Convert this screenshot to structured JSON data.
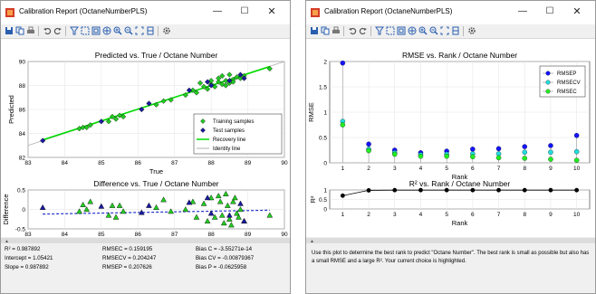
{
  "left": {
    "window_title": "Calibration Report (OctaneNumberPLS)",
    "stats": [
      {
        "label": "R² = 0.987892"
      },
      {
        "label": "Intercept = 1.05421"
      },
      {
        "label": "Slope = 0.987892"
      },
      {
        "label": "RMSEC = 0.159195"
      },
      {
        "label": "RMSECV = 0.204247"
      },
      {
        "label": "RMSEP = 0.207626"
      },
      {
        "label": "Bias C = -3.55271e-14"
      },
      {
        "label": "Bias CV = -0.00879367"
      },
      {
        "label": "Bias P = -0.0625958"
      }
    ]
  },
  "right": {
    "window_title": "Calibration Report (OctaneNumberPLS)",
    "note": "Use this plot to determine the best rank to predict \"Octane Number\". The best rank is small as possible but also has a small RMSE and a large R². Your current choice is highlighted."
  },
  "toolbar_icons": [
    "save-icon",
    "copy-icon",
    "print-icon",
    "undo-icon",
    "redo-icon",
    "filter-icon",
    "select-icon",
    "zoom-box-icon",
    "pan-icon",
    "zoom-in-icon",
    "zoom-out-icon",
    "fit-icon",
    "grid-icon",
    "settings-icon"
  ],
  "colors": {
    "training": "#22cc22",
    "test": "#1a1aa0",
    "recovery": "#00dd00",
    "identity": "#b0b0b0",
    "rmsep": "#1414ff",
    "rmsecv": "#22dddd",
    "rmsec": "#22ee22",
    "accent_red": "#d43c28"
  },
  "chart_data": [
    {
      "type": "scatter",
      "title": "Predicted vs. True / Octane Number",
      "xlabel": "True",
      "ylabel": "Predicted",
      "xlim": [
        83,
        90
      ],
      "ylim": [
        82,
        90
      ],
      "xticks": [
        83,
        84,
        85,
        86,
        87,
        88,
        89,
        90
      ],
      "yticks": [
        82,
        84,
        86,
        88,
        90
      ],
      "grid": true,
      "legend": {
        "placement": "bottom-right",
        "entries": [
          "Training samples",
          "Test samples",
          "Recovery line",
          "Identity line"
        ]
      },
      "series": [
        {
          "name": "Training samples",
          "marker": "diamond",
          "points": [
            [
              84.4,
              84.4
            ],
            [
              84.5,
              84.5
            ],
            [
              84.6,
              84.5
            ],
            [
              84.7,
              84.7
            ],
            [
              85.2,
              85.0
            ],
            [
              85.3,
              85.4
            ],
            [
              85.4,
              85.2
            ],
            [
              85.5,
              85.5
            ],
            [
              85.6,
              85.4
            ],
            [
              86.5,
              86.4
            ],
            [
              86.7,
              86.7
            ],
            [
              86.9,
              86.8
            ],
            [
              87.3,
              87.2
            ],
            [
              87.5,
              87.6
            ],
            [
              87.6,
              87.4
            ],
            [
              87.8,
              87.9
            ],
            [
              87.9,
              87.7
            ],
            [
              88.0,
              88.1
            ],
            [
              88.1,
              87.9
            ],
            [
              88.2,
              88.3
            ],
            [
              88.3,
              88.1
            ],
            [
              88.4,
              88.4
            ],
            [
              88.5,
              88.2
            ],
            [
              88.6,
              88.5
            ],
            [
              88.7,
              88.7
            ],
            [
              88.8,
              88.6
            ],
            [
              88.9,
              88.8
            ],
            [
              88.2,
              88.6
            ],
            [
              88.0,
              88.4
            ],
            [
              87.7,
              88.2
            ],
            [
              88.5,
              88.9
            ],
            [
              88.3,
              88.8
            ],
            [
              88.6,
              88.3
            ],
            [
              88.4,
              88.0
            ],
            [
              89.6,
              89.4
            ]
          ]
        },
        {
          "name": "Test samples",
          "marker": "diamond",
          "points": [
            [
              83.4,
              83.4
            ],
            [
              85.0,
              85.0
            ],
            [
              86.1,
              86.0
            ],
            [
              86.3,
              86.5
            ],
            [
              87.4,
              87.6
            ],
            [
              87.9,
              88.3
            ],
            [
              88.0,
              88.0
            ],
            [
              88.5,
              88.4
            ],
            [
              88.8,
              88.9
            ],
            [
              88.9,
              88.6
            ]
          ]
        },
        {
          "name": "Recovery line",
          "type": "line",
          "x": [
            83.4,
            89.6
          ],
          "y": [
            83.46,
            89.58
          ]
        },
        {
          "name": "Identity line",
          "type": "line",
          "x": [
            83,
            90
          ],
          "y": [
            83,
            90
          ]
        }
      ]
    },
    {
      "type": "scatter",
      "title": "Difference vs. True / Octane Number",
      "xlabel": "",
      "ylabel": "Difference",
      "xlim": [
        83,
        90
      ],
      "ylim": [
        -0.5,
        0.5
      ],
      "xticks": [
        83,
        84,
        85,
        86,
        87,
        88,
        89,
        90
      ],
      "yticks": [
        -0.5,
        0,
        0.5
      ],
      "grid": true,
      "series": [
        {
          "name": "Training samples",
          "marker": "triangle",
          "points": [
            [
              84.4,
              -0.05
            ],
            [
              84.5,
              0.12
            ],
            [
              84.6,
              0.0
            ],
            [
              84.7,
              0.2
            ],
            [
              85.2,
              -0.15
            ],
            [
              85.3,
              0.1
            ],
            [
              85.4,
              -0.2
            ],
            [
              85.5,
              0.1
            ],
            [
              85.6,
              -0.05
            ],
            [
              86.5,
              0.05
            ],
            [
              86.7,
              0.25
            ],
            [
              86.9,
              -0.05
            ],
            [
              87.3,
              0.0
            ],
            [
              87.5,
              0.2
            ],
            [
              87.6,
              -0.2
            ],
            [
              87.8,
              0.15
            ],
            [
              87.9,
              -0.3
            ],
            [
              88.0,
              0.3
            ],
            [
              88.1,
              -0.2
            ],
            [
              88.2,
              0.35
            ],
            [
              88.3,
              -0.15
            ],
            [
              88.4,
              0.4
            ],
            [
              88.5,
              -0.25
            ],
            [
              88.6,
              0.2
            ],
            [
              88.7,
              -0.1
            ],
            [
              88.8,
              0.0
            ],
            [
              88.9,
              -0.3
            ],
            [
              88.25,
              0.2
            ],
            [
              88.35,
              -0.35
            ],
            [
              88.45,
              0.1
            ],
            [
              88.55,
              -0.4
            ],
            [
              88.65,
              0.3
            ],
            [
              88.75,
              -0.2
            ],
            [
              89.6,
              -0.15
            ]
          ]
        },
        {
          "name": "Test samples",
          "marker": "triangle",
          "points": [
            [
              83.4,
              0.05
            ],
            [
              85.0,
              0.08
            ],
            [
              86.1,
              -0.08
            ],
            [
              86.3,
              0.1
            ],
            [
              87.4,
              0.18
            ],
            [
              87.9,
              0.3
            ],
            [
              88.0,
              -0.1
            ],
            [
              88.5,
              -0.15
            ],
            [
              88.8,
              0.15
            ],
            [
              88.9,
              -0.3
            ]
          ]
        },
        {
          "name": "Bias line",
          "type": "line",
          "x": [
            83.4,
            89.6
          ],
          "y": [
            -0.12,
            -0.02
          ]
        }
      ]
    },
    {
      "type": "line",
      "title": "RMSE vs. Rank / Octane Number",
      "xlabel": "Rank",
      "ylabel": "RMSE",
      "xlim": [
        0.5,
        10.5
      ],
      "ylim": [
        0,
        2
      ],
      "xticks": [
        1,
        2,
        3,
        4,
        5,
        6,
        7,
        8,
        9,
        10
      ],
      "yticks": [
        0,
        0.5,
        1,
        1.5,
        2
      ],
      "grid": true,
      "legend": {
        "placement": "top-right",
        "entries": [
          "RMSEP",
          "RMSECV",
          "RMSEC"
        ]
      },
      "x": [
        1,
        2,
        3,
        4,
        5,
        6,
        7,
        8,
        9,
        10
      ],
      "series": [
        {
          "name": "RMSEP",
          "values": [
            1.97,
            0.37,
            0.25,
            0.2,
            0.23,
            0.27,
            0.28,
            0.32,
            0.34,
            0.54
          ]
        },
        {
          "name": "RMSECV",
          "values": [
            0.82,
            0.27,
            0.2,
            0.16,
            0.17,
            0.18,
            0.18,
            0.21,
            0.21,
            0.22
          ]
        },
        {
          "name": "RMSEC",
          "values": [
            0.75,
            0.24,
            0.17,
            0.13,
            0.13,
            0.12,
            0.1,
            0.09,
            0.07,
            0.05
          ]
        }
      ]
    },
    {
      "type": "line",
      "title": "R² vs. Rank / Octane Number",
      "xlabel": "Rank",
      "ylabel": "R²",
      "xlim": [
        0.5,
        10.5
      ],
      "ylim": [
        0,
        1
      ],
      "xticks": [
        1,
        2,
        3,
        4,
        5,
        6,
        7,
        8,
        9,
        10
      ],
      "yticks": [
        0,
        0.5,
        1
      ],
      "grid": true,
      "x": [
        1,
        2,
        3,
        4,
        5,
        6,
        7,
        8,
        9,
        10
      ],
      "series": [
        {
          "name": "",
          "values": [
            0.7,
            0.98,
            0.99,
            0.99,
            0.99,
            0.99,
            0.99,
            0.99,
            0.99,
            0.99
          ]
        }
      ]
    }
  ]
}
